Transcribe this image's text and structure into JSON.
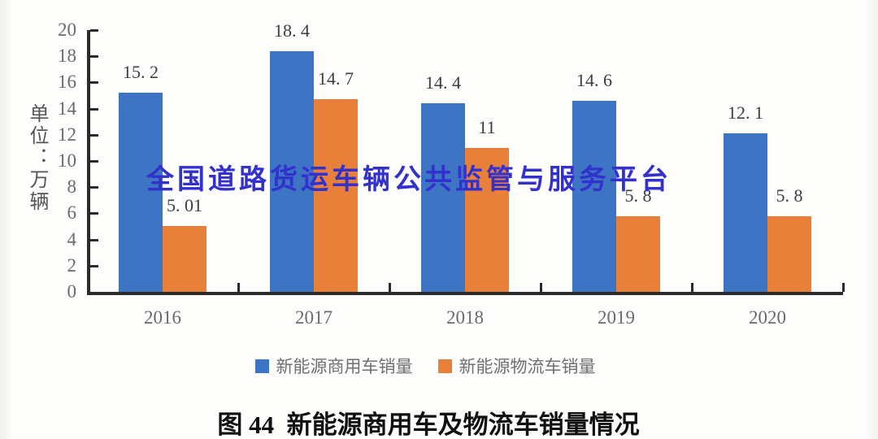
{
  "watermark": {
    "text": "全国道路货运车辆公共监管与服务平台",
    "color": "#3231CE"
  },
  "caption": "图 44  新能源商用车及物流车销量情况",
  "unit_label": "单位：万辆",
  "legend": {
    "items": [
      {
        "key": "commercial",
        "label": "新能源商用车销量",
        "color": "#3D74C4"
      },
      {
        "key": "logistics",
        "label": "新能源物流车销量",
        "color": "#E9803A"
      }
    ]
  },
  "chart_data": {
    "type": "bar",
    "title": "图 44  新能源商用车及物流车销量情况",
    "categories": [
      "2016",
      "2017",
      "2018",
      "2019",
      "2020"
    ],
    "series": [
      {
        "key": "commercial",
        "name": "新能源商用车销量",
        "color": "#3D74C4",
        "values": [
          15.2,
          18.4,
          14.4,
          14.6,
          12.1
        ]
      },
      {
        "key": "logistics",
        "name": "新能源物流车销量",
        "color": "#E9803A",
        "values": [
          5.01,
          14.7,
          11,
          5.8,
          5.8
        ]
      }
    ],
    "ylabel": "单位：万辆",
    "ylim": [
      0,
      20
    ],
    "ytick_step": 2,
    "grid": false,
    "legend_position": "bottom",
    "bar_value_labels": true
  },
  "axis": {
    "line_color": "#2B2B2B",
    "tick_label_color": "#6B6B6B",
    "value_label_color": "#3D3D3D"
  }
}
